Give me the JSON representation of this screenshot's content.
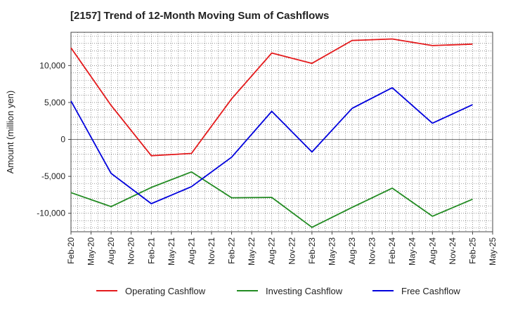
{
  "chart_data": {
    "type": "line",
    "title": "[2157]  Trend of 12-Month Moving Sum of Cashflows",
    "xlabel": "",
    "ylabel": "Amount (million yen)",
    "ylim": [
      -12500,
      14500
    ],
    "yticks": [
      10000,
      5000,
      0,
      -5000,
      -10000
    ],
    "ytick_labels": [
      "10,000",
      "5,000",
      "0",
      "-5,000",
      "-10,000"
    ],
    "x_labels": [
      "Feb-20",
      "May-20",
      "Aug-20",
      "Nov-20",
      "Feb-21",
      "May-21",
      "Aug-21",
      "Nov-21",
      "Feb-22",
      "May-22",
      "Aug-22",
      "Nov-22",
      "Feb-23",
      "May-23",
      "Aug-23",
      "Nov-23",
      "Feb-24",
      "May-24",
      "Aug-24",
      "Nov-24",
      "Feb-25",
      "May-25"
    ],
    "grid": true,
    "legend_position": "bottom",
    "series": [
      {
        "name": "Operating Cashflow",
        "color": "#e41a1c",
        "points": [
          [
            "Feb-20",
            12400
          ],
          [
            "Aug-20",
            4600
          ],
          [
            "Feb-21",
            -2200
          ],
          [
            "Aug-21",
            -1900
          ],
          [
            "Feb-22",
            5500
          ],
          [
            "Aug-22",
            11700
          ],
          [
            "Feb-23",
            10300
          ],
          [
            "Aug-23",
            13400
          ],
          [
            "Feb-24",
            13600
          ],
          [
            "Aug-24",
            12700
          ],
          [
            "Feb-25",
            12900
          ]
        ]
      },
      {
        "name": "Investing Cashflow",
        "color": "#228b22",
        "points": [
          [
            "Feb-20",
            -7200
          ],
          [
            "Aug-20",
            -9100
          ],
          [
            "Feb-21",
            -6500
          ],
          [
            "Aug-21",
            -4400
          ],
          [
            "Feb-22",
            -7900
          ],
          [
            "Aug-22",
            -7850
          ],
          [
            "Feb-23",
            -11900
          ],
          [
            "Aug-23",
            -9200
          ],
          [
            "Feb-24",
            -6600
          ],
          [
            "Aug-24",
            -10400
          ],
          [
            "Feb-25",
            -8100
          ]
        ]
      },
      {
        "name": "Free Cashflow",
        "color": "#0000dd",
        "points": [
          [
            "Feb-20",
            5200
          ],
          [
            "Aug-20",
            -4600
          ],
          [
            "Feb-21",
            -8700
          ],
          [
            "Aug-21",
            -6400
          ],
          [
            "Feb-22",
            -2400
          ],
          [
            "Aug-22",
            3800
          ],
          [
            "Feb-23",
            -1700
          ],
          [
            "Aug-23",
            4200
          ],
          [
            "Feb-24",
            7000
          ],
          [
            "Aug-24",
            2200
          ],
          [
            "Feb-25",
            4700
          ]
        ]
      }
    ]
  }
}
